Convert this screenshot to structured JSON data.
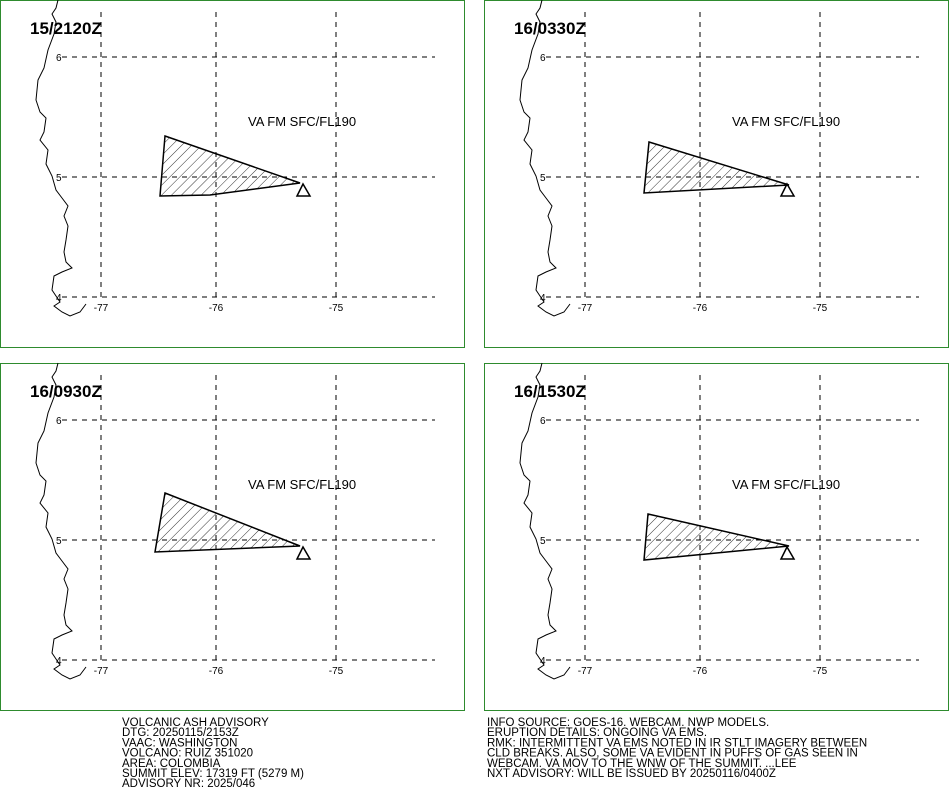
{
  "panels": [
    {
      "time": "15/2120Z",
      "label": "VA FM SFC/FL190"
    },
    {
      "time": "16/0330Z",
      "label": "VA FM SFC/FL190"
    },
    {
      "time": "16/0930Z",
      "label": "VA FM SFC/FL190"
    },
    {
      "time": "16/1530Z",
      "label": "VA FM SFC/FL190"
    }
  ],
  "lat_labels": [
    "6",
    "5",
    "4"
  ],
  "lon_labels": [
    "-77",
    "-76",
    "-75"
  ],
  "advisory_left": [
    "VOLCANIC ASH ADVISORY",
    "DTG: 20250115/2153Z",
    "VAAC: WASHINGTON",
    "VOLCANO: RUIZ 351020",
    "AREA: COLOMBIA",
    "SUMMIT ELEV: 17319 FT (5279 M)",
    "ADVISORY NR: 2025/046"
  ],
  "advisory_right": [
    "INFO SOURCE: GOES-16. WEBCAM. NWP MODELS.",
    "ERUPTION DETAILS: ONGOING VA EMS.",
    "RMK: INTERMITTENT VA EMS NOTED IN IR STLT IMAGERY BETWEEN",
    "CLD BREAKS. ALSO, SOME VA EVIDENT IN PUFFS OF GAS SEEN IN",
    "WEBCAM. VA MOV TO THE WNW OF THE SUMMIT. ...LEE",
    "NXT ADVISORY: WILL BE ISSUED BY 20250116/0400Z"
  ]
}
